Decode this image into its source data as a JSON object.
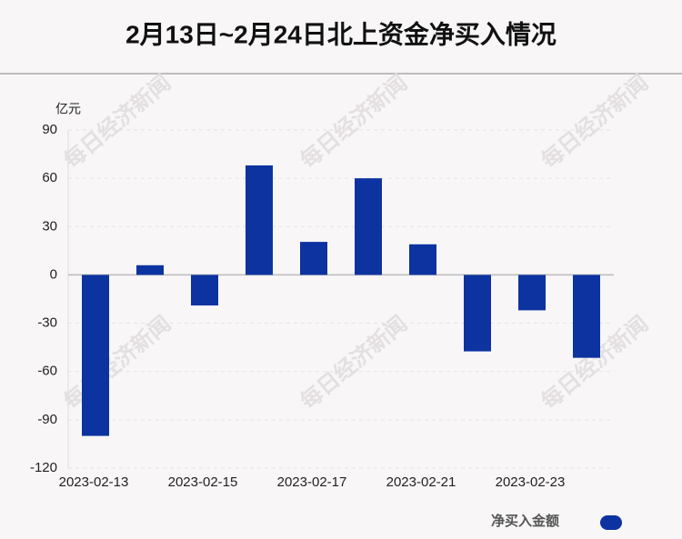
{
  "chart_data": {
    "type": "bar",
    "title": "2月13日~2月24日北上资金净买入情况",
    "y_label": "亿元",
    "watermark": "每日经济新闻",
    "categories": [
      "2023-02-13",
      null,
      "2023-02-15",
      null,
      "2023-02-17",
      null,
      "2023-02-21",
      null,
      "2023-02-23",
      null
    ],
    "series": [
      {
        "name": "净买入金额",
        "color": "#0c33a0",
        "values": [
          -100,
          6,
          -19,
          68,
          20.5,
          60,
          19,
          -47.5,
          -22,
          -51.5
        ]
      }
    ],
    "ylim": [
      -120,
      90
    ],
    "yticks": [
      -120,
      -90,
      -60,
      -30,
      0,
      30,
      60,
      90
    ],
    "grid": true
  }
}
